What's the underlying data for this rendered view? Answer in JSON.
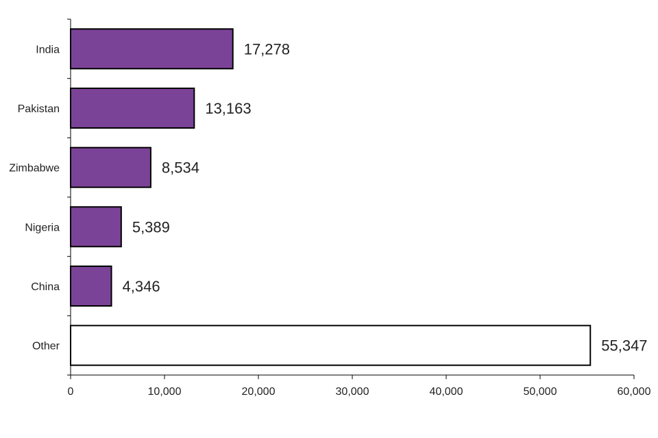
{
  "chart_data": {
    "type": "bar",
    "orientation": "horizontal",
    "categories": [
      "India",
      "Pakistan",
      "Zimbabwe",
      "Nigeria",
      "China",
      "Other"
    ],
    "values": [
      17278,
      13163,
      8534,
      5389,
      4346,
      55347
    ],
    "data_labels": [
      "17,278",
      "13,163",
      "8,534",
      "5,389",
      "4,346",
      "55,347"
    ],
    "xlim": [
      0,
      60000
    ],
    "x_ticks": [
      0,
      10000,
      20000,
      30000,
      40000,
      50000,
      60000
    ],
    "x_tick_labels": [
      "0",
      "10,000",
      "20,000",
      "30,000",
      "40,000",
      "50,000",
      "60,000"
    ],
    "colors": [
      "#7b4397",
      "#7b4397",
      "#7b4397",
      "#7b4397",
      "#7b4397",
      "#ffffff"
    ],
    "grid": false,
    "legend": "none"
  }
}
